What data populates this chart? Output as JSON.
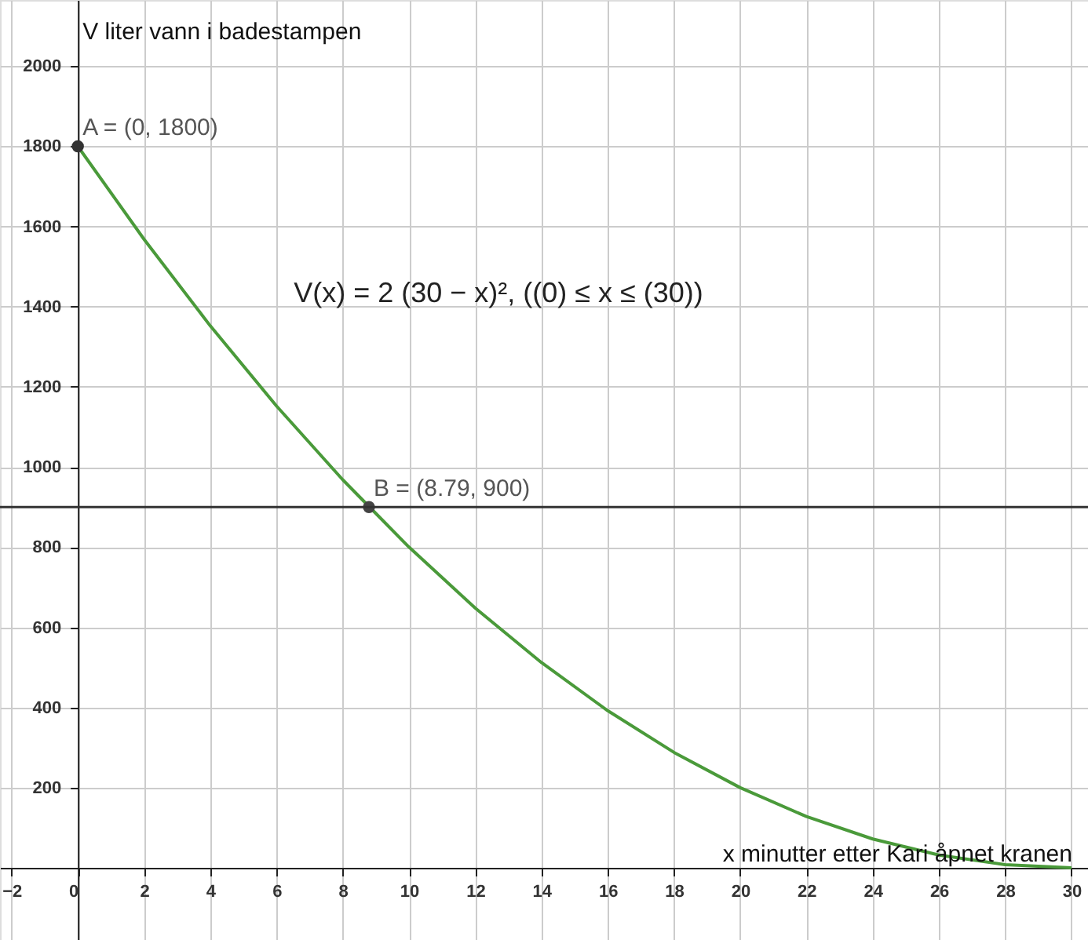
{
  "chart_data": {
    "type": "line",
    "xlabel": "x minutter etter Kari åpnet kranen",
    "ylabel": "V liter vann i badestampen",
    "x": [
      0,
      2,
      4,
      6,
      8,
      10,
      12,
      14,
      16,
      18,
      20,
      22,
      24,
      26,
      28,
      30
    ],
    "series": [
      {
        "color": "#4a9a3a",
        "values": [
          1800,
          1568,
          1352,
          1152,
          968,
          800,
          648,
          512,
          392,
          288,
          200,
          128,
          72,
          32,
          8,
          0
        ]
      },
      {
        "type": "scatter",
        "x": [
          0,
          8.79
        ],
        "colors": [
          "#333333",
          "#444444"
        ],
        "marker": "circle",
        "values": [
          1800,
          900
        ]
      }
    ],
    "ref_lines": [
      {
        "axis": "y",
        "value": 900,
        "color": "#333333"
      }
    ],
    "annotations": [
      {
        "text": "A = (0, 1800)",
        "x": 0,
        "y": 1800
      },
      {
        "text": "B = (8.79, 900)",
        "x": 8.79,
        "y": 900
      },
      "V(x) = 2 (30 − x)², ((0) ≤ x ≤ (30))"
    ],
    "xlim": [
      -2.35,
      30.5
    ],
    "ylim": [
      -180,
      2165
    ],
    "xticks": [
      -2,
      0,
      2,
      4,
      6,
      8,
      10,
      12,
      14,
      16,
      18,
      20,
      22,
      24,
      26,
      28,
      30
    ],
    "yticks": [
      200,
      400,
      600,
      800,
      1000,
      1200,
      1400,
      1600,
      1800,
      2000
    ],
    "grid": true
  }
}
